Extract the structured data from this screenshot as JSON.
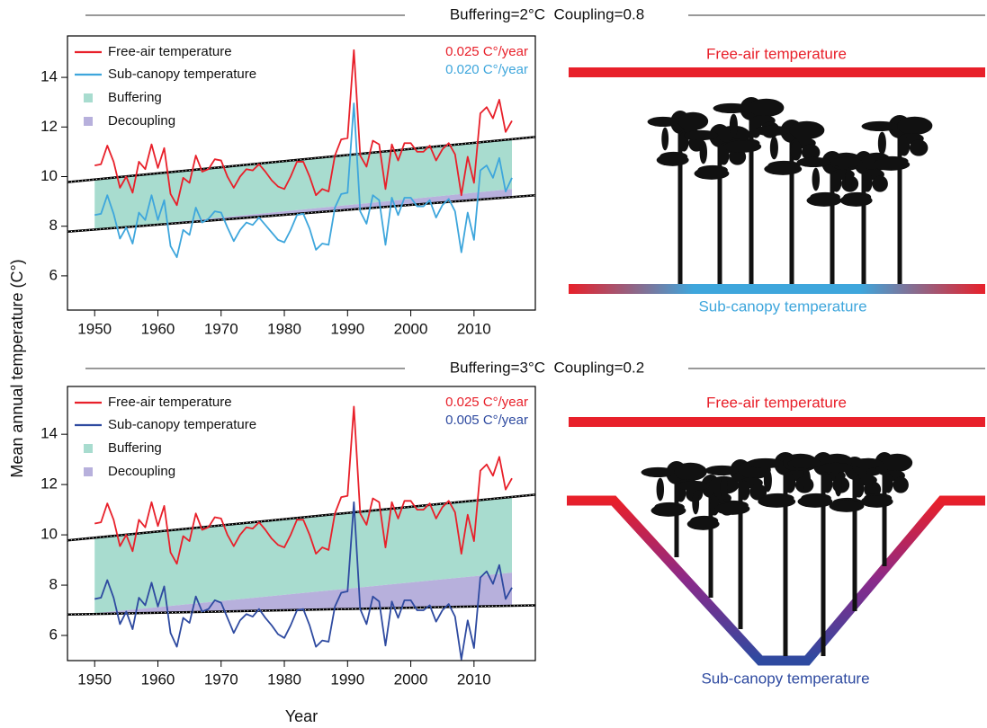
{
  "figure": {
    "y_label": "Mean annual temperature (C°)",
    "x_label": "Year"
  },
  "illustrations": [
    {
      "top_label": "Free-air temperature",
      "bottom_label": "Sub-canopy temperature"
    },
    {
      "top_label": "Free-air temperature",
      "bottom_label": "Sub-canopy temperature"
    }
  ],
  "chart_data": [
    {
      "type": "line",
      "title": "Buffering=2°C  Coupling=0.8",
      "x": [
        1950,
        1951,
        1952,
        1953,
        1954,
        1955,
        1956,
        1957,
        1958,
        1959,
        1960,
        1961,
        1962,
        1963,
        1964,
        1965,
        1966,
        1967,
        1968,
        1969,
        1970,
        1971,
        1972,
        1973,
        1974,
        1975,
        1976,
        1977,
        1978,
        1979,
        1980,
        1981,
        1982,
        1983,
        1984,
        1985,
        1986,
        1987,
        1988,
        1989,
        1990,
        1991,
        1992,
        1993,
        1994,
        1995,
        1996,
        1997,
        1998,
        1999,
        2000,
        2001,
        2002,
        2003,
        2004,
        2005,
        2006,
        2007,
        2008,
        2009,
        2010,
        2011,
        2012,
        2013,
        2014,
        2015,
        2016
      ],
      "series": [
        {
          "name": "Free-air temperature",
          "color": "#e8202a",
          "values": [
            10.45,
            10.5,
            11.25,
            10.6,
            9.55,
            10.0,
            9.35,
            10.6,
            10.3,
            11.3,
            10.35,
            11.15,
            9.3,
            8.85,
            9.95,
            9.75,
            10.85,
            10.2,
            10.3,
            10.7,
            10.65,
            10.0,
            9.55,
            10.0,
            10.3,
            10.25,
            10.5,
            10.2,
            9.85,
            9.6,
            9.5,
            10.0,
            10.6,
            10.6,
            10.0,
            9.25,
            9.5,
            9.4,
            10.85,
            11.5,
            11.55,
            15.1,
            10.85,
            10.4,
            11.45,
            11.3,
            9.5,
            11.3,
            10.65,
            11.35,
            11.35,
            11.0,
            11.0,
            11.25,
            10.65,
            11.1,
            11.35,
            10.9,
            9.25,
            10.8,
            9.75,
            12.55,
            12.8,
            12.35,
            13.1,
            11.8,
            12.25
          ]
        },
        {
          "name": "Sub-canopy temperature",
          "color": "#3ea6dc",
          "values": [
            8.45,
            8.5,
            9.25,
            8.5,
            7.5,
            7.95,
            7.3,
            8.55,
            8.25,
            9.25,
            8.25,
            9.05,
            7.2,
            6.75,
            7.85,
            7.65,
            8.75,
            8.15,
            8.3,
            8.6,
            8.55,
            7.95,
            7.4,
            7.85,
            8.15,
            8.05,
            8.35,
            8.05,
            7.75,
            7.45,
            7.35,
            7.85,
            8.45,
            8.5,
            7.9,
            7.05,
            7.3,
            7.25,
            8.75,
            9.3,
            9.35,
            12.95,
            8.6,
            8.1,
            9.25,
            9.05,
            7.25,
            9.15,
            8.45,
            9.15,
            9.15,
            8.8,
            8.8,
            9.05,
            8.35,
            8.85,
            9.1,
            8.6,
            6.95,
            8.55,
            7.45,
            10.25,
            10.45,
            9.95,
            10.75,
            9.4,
            9.95
          ]
        }
      ],
      "areas": [
        {
          "name": "Buffering",
          "color": "#a8dccf",
          "x": [
            1950,
            2016
          ],
          "upper": [
            9.88,
            11.5
          ],
          "lower": [
            7.85,
            9.5
          ]
        },
        {
          "name": "Decoupling",
          "color": "#b7b0dc",
          "x": [
            1950,
            2016
          ],
          "upper": [
            7.85,
            9.5
          ],
          "lower": [
            7.85,
            9.15
          ]
        }
      ],
      "trends": [
        {
          "x": [
            1945.7,
            2019.7
          ],
          "values": [
            9.78,
            11.6
          ]
        },
        {
          "x": [
            1945.7,
            2019.7
          ],
          "values": [
            7.78,
            9.25
          ]
        }
      ],
      "annotations": [
        {
          "text": "0.025 C°/year",
          "color": "#e8202a"
        },
        {
          "text": "0.020 C°/year",
          "color": "#3ea6dc"
        }
      ],
      "xlim": [
        1945.7,
        2019.7
      ],
      "ylim": [
        4.62,
        15.67
      ],
      "xticks": [
        1950,
        1960,
        1970,
        1980,
        1990,
        2000,
        2010
      ],
      "yticks": [
        6,
        8,
        10,
        12,
        14
      ]
    },
    {
      "type": "line",
      "title": "Buffering=3°C  Coupling=0.2",
      "x": [
        1950,
        1951,
        1952,
        1953,
        1954,
        1955,
        1956,
        1957,
        1958,
        1959,
        1960,
        1961,
        1962,
        1963,
        1964,
        1965,
        1966,
        1967,
        1968,
        1969,
        1970,
        1971,
        1972,
        1973,
        1974,
        1975,
        1976,
        1977,
        1978,
        1979,
        1980,
        1981,
        1982,
        1983,
        1984,
        1985,
        1986,
        1987,
        1988,
        1989,
        1990,
        1991,
        1992,
        1993,
        1994,
        1995,
        1996,
        1997,
        1998,
        1999,
        2000,
        2001,
        2002,
        2003,
        2004,
        2005,
        2006,
        2007,
        2008,
        2009,
        2010,
        2011,
        2012,
        2013,
        2014,
        2015,
        2016
      ],
      "series": [
        {
          "name": "Free-air temperature",
          "color": "#e8202a",
          "values": [
            10.45,
            10.5,
            11.25,
            10.6,
            9.55,
            10.0,
            9.35,
            10.6,
            10.3,
            11.3,
            10.35,
            11.15,
            9.3,
            8.85,
            9.95,
            9.75,
            10.85,
            10.2,
            10.3,
            10.7,
            10.65,
            10.0,
            9.55,
            10.0,
            10.3,
            10.25,
            10.5,
            10.2,
            9.85,
            9.6,
            9.5,
            10.0,
            10.6,
            10.6,
            10.0,
            9.25,
            9.5,
            9.4,
            10.85,
            11.5,
            11.55,
            15.1,
            10.85,
            10.4,
            11.45,
            11.3,
            9.5,
            11.3,
            10.65,
            11.35,
            11.35,
            11.0,
            11.0,
            11.25,
            10.65,
            11.1,
            11.35,
            10.9,
            9.25,
            10.8,
            9.75,
            12.55,
            12.8,
            12.35,
            13.1,
            11.8,
            12.25
          ]
        },
        {
          "name": "Sub-canopy temperature",
          "color": "#2e4aa0",
          "values": [
            7.45,
            7.5,
            8.2,
            7.5,
            6.45,
            6.95,
            6.25,
            7.5,
            7.2,
            8.1,
            7.15,
            7.95,
            6.1,
            5.55,
            6.7,
            6.5,
            7.55,
            6.95,
            7.05,
            7.4,
            7.3,
            6.7,
            6.1,
            6.6,
            6.85,
            6.75,
            7.05,
            6.7,
            6.4,
            6.05,
            5.9,
            6.4,
            7.0,
            7.05,
            6.4,
            5.55,
            5.8,
            5.75,
            7.15,
            7.7,
            7.75,
            11.3,
            7.05,
            6.45,
            7.55,
            7.35,
            5.6,
            7.35,
            6.7,
            7.4,
            7.4,
            7.0,
            7.0,
            7.2,
            6.55,
            7.0,
            7.25,
            6.75,
            5.05,
            6.6,
            5.5,
            8.3,
            8.55,
            8.05,
            8.8,
            7.45,
            7.9
          ]
        }
      ],
      "areas": [
        {
          "name": "Buffering",
          "color": "#a8dccf",
          "x": [
            1950,
            2016
          ],
          "upper": [
            9.88,
            11.5
          ],
          "lower": [
            6.88,
            8.5
          ]
        },
        {
          "name": "Decoupling",
          "color": "#b7b0dc",
          "x": [
            1950,
            2016
          ],
          "upper": [
            6.88,
            8.5
          ],
          "lower": [
            6.88,
            7.15
          ]
        }
      ],
      "trends": [
        {
          "x": [
            1945.7,
            2019.7
          ],
          "values": [
            9.78,
            11.6
          ]
        },
        {
          "x": [
            1945.7,
            2019.7
          ],
          "values": [
            6.83,
            7.2
          ]
        }
      ],
      "annotations": [
        {
          "text": "0.025 C°/year",
          "color": "#e8202a"
        },
        {
          "text": "0.005 C°/year",
          "color": "#2e4aa0"
        }
      ],
      "xlim": [
        1945.7,
        2019.7
      ],
      "ylim": [
        5.0,
        15.9
      ],
      "xticks": [
        1950,
        1960,
        1970,
        1980,
        1990,
        2000,
        2010
      ],
      "yticks": [
        6,
        8,
        10,
        12,
        14
      ]
    }
  ]
}
